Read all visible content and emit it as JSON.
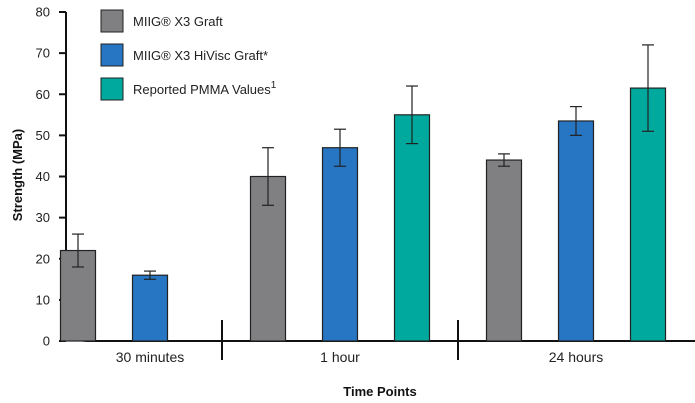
{
  "chart_data": {
    "type": "bar",
    "title": "",
    "xlabel": "Time Points",
    "ylabel": "Strength (MPa)",
    "ylim": [
      0,
      80
    ],
    "yticks": [
      0,
      10,
      20,
      30,
      40,
      50,
      60,
      70,
      80
    ],
    "grid": false,
    "legend_position": "top-left",
    "categories": [
      "30 minutes",
      "1 hour",
      "24 hours"
    ],
    "series": [
      {
        "name": "MIIG® X3 Graft",
        "color": "#808083",
        "values": [
          22,
          40,
          44
        ],
        "error": [
          [
            4,
            4
          ],
          [
            7,
            7
          ],
          [
            1.5,
            1.5
          ]
        ]
      },
      {
        "name": "MIIG® X3 HiVisc Graft*",
        "color": "#2676c4",
        "values": [
          16,
          47,
          53.5
        ],
        "error": [
          [
            1,
            1
          ],
          [
            4.5,
            4.5
          ],
          [
            3.5,
            3.5
          ]
        ]
      },
      {
        "name": "Reported PMMA Values",
        "name_superscript": "1",
        "color": "#00a99d",
        "values": [
          null,
          55,
          61.5
        ],
        "error": [
          null,
          [
            7,
            7
          ],
          [
            10.5,
            10.5
          ]
        ]
      }
    ]
  }
}
